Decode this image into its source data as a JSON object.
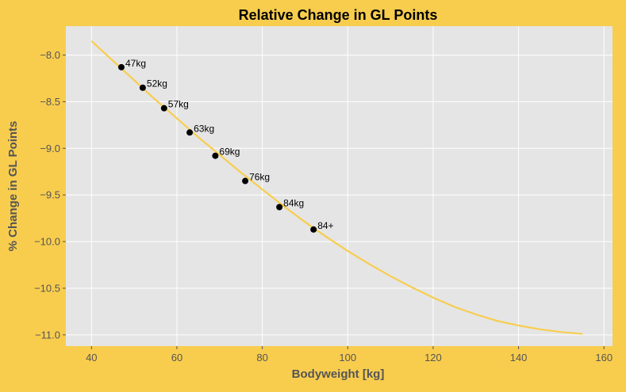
{
  "colors": {
    "background": "#f8cd4e",
    "plot_area": "#e5e5e5",
    "grid": "#ffffff",
    "curve": "#f8cd4e",
    "point": "#000000",
    "axis_text": "#555555",
    "title": "#000000"
  },
  "chart_data": {
    "type": "line",
    "title": "Relative Change in GL Points",
    "xlabel": "Bodyweight [kg]",
    "ylabel": "% Change in GL Points",
    "xlim": [
      34,
      162
    ],
    "ylim": [
      -11.12,
      -7.69
    ],
    "grid": true,
    "xticks": [
      40,
      60,
      80,
      100,
      120,
      140,
      160
    ],
    "yticks": [
      -8.0,
      -8.5,
      -9.0,
      -9.5,
      -10.0,
      -10.5,
      -11.0
    ],
    "ytick_labels": [
      "−8.0",
      "−8.5",
      "−9.0",
      "−9.5",
      "−10.0",
      "−10.5",
      "−11.0"
    ],
    "curve": {
      "x": [
        40,
        45,
        50,
        55,
        60,
        65,
        70,
        75,
        80,
        85,
        90,
        95,
        100,
        105,
        110,
        115,
        120,
        125,
        130,
        135,
        140,
        145,
        150,
        155
      ],
      "y": [
        -7.85,
        -8.06,
        -8.27,
        -8.48,
        -8.68,
        -8.88,
        -9.07,
        -9.26,
        -9.44,
        -9.62,
        -9.79,
        -9.95,
        -10.1,
        -10.24,
        -10.37,
        -10.49,
        -10.6,
        -10.7,
        -10.78,
        -10.85,
        -10.9,
        -10.94,
        -10.97,
        -10.99
      ]
    },
    "points": [
      {
        "label": "47kg",
        "x": 47,
        "y": -8.13
      },
      {
        "label": "52kg",
        "x": 52,
        "y": -8.35
      },
      {
        "label": "57kg",
        "x": 57,
        "y": -8.57
      },
      {
        "label": "63kg",
        "x": 63,
        "y": -8.83
      },
      {
        "label": "69kg",
        "x": 69,
        "y": -9.08
      },
      {
        "label": "76kg",
        "x": 76,
        "y": -9.35
      },
      {
        "label": "84kg",
        "x": 84,
        "y": -9.63
      },
      {
        "label": "84+",
        "x": 92,
        "y": -9.87
      }
    ]
  }
}
